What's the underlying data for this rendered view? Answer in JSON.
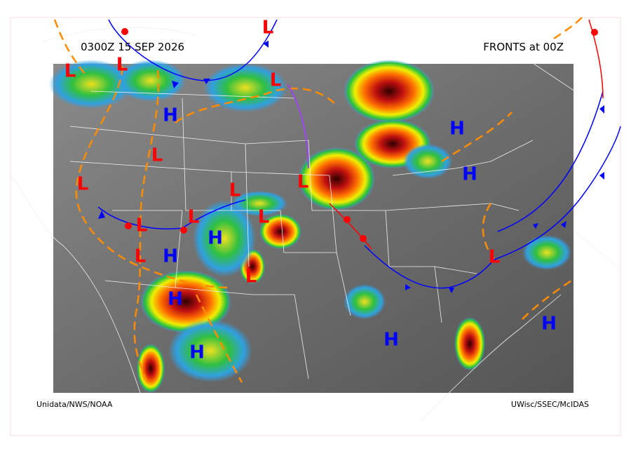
{
  "header": {
    "valid_time": "0300Z 15 SEP 2026",
    "fronts_label": "FRONTS at 00Z"
  },
  "footer": {
    "left_credit": "Unidata/NWS/NOAA",
    "right_credit": "UWisc/SSEC/McIDAS"
  },
  "pressure_centers": {
    "lows": [
      "L",
      "L",
      "L",
      "L",
      "L",
      "L",
      "L",
      "L",
      "L",
      "L",
      "L",
      "L",
      "L",
      "L"
    ],
    "highs": [
      "H",
      "H",
      "H",
      "H",
      "H",
      "H",
      "H",
      "H",
      "H"
    ]
  }
}
